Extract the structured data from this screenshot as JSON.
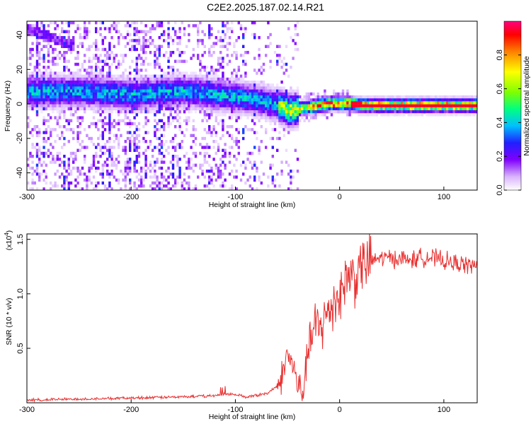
{
  "title": "C2E2.2025.187.02.14.R21",
  "chart_data": [
    {
      "type": "heatmap",
      "xlabel": "Height of straight line (km)",
      "ylabel": "Frequency (Hz)",
      "xlim": [
        -300,
        132
      ],
      "ylim": [
        -50,
        48
      ],
      "xticks": [
        -300,
        -200,
        -100,
        0,
        100
      ],
      "xtick_labels": [
        "-300",
        "-200",
        "-100",
        "0",
        "100"
      ],
      "yticks": [
        -40,
        -20,
        0,
        20,
        40
      ],
      "ytick_labels": [
        "-40",
        "-20",
        "0",
        "20",
        "40"
      ],
      "colorbar": {
        "label": "Normalized spectral amplitude",
        "range": [
          0,
          1
        ],
        "ticks": [
          0.0,
          0.2,
          0.4,
          0.6,
          0.8
        ],
        "tick_labels": [
          "0.0",
          "0.2",
          "0.4",
          "0.6",
          "0.8"
        ],
        "colors": [
          "#ffffff",
          "#d9b3ff",
          "#8000ff",
          "#2020ff",
          "#00c0ff",
          "#00ff80",
          "#80ff00",
          "#ffff00",
          "#ff8000",
          "#ff0000",
          "#ff0080"
        ]
      },
      "ridge": {
        "name": "",
        "x": [
          -300,
          -280,
          -260,
          -240,
          -220,
          -200,
          -180,
          -160,
          -140,
          -120,
          -100,
          -80,
          -60,
          -50,
          -40,
          -30,
          -20,
          -10,
          0,
          10,
          20,
          40,
          80,
          132
        ],
        "y": [
          8,
          8,
          8,
          8,
          7,
          6,
          7,
          8,
          8,
          6,
          5,
          3,
          0,
          -3,
          -2,
          -1,
          0,
          1,
          1,
          1,
          0,
          0,
          0,
          0
        ]
      },
      "upper_branch": {
        "x": [
          -300,
          -280,
          -260
        ],
        "y": [
          44,
          40,
          35
        ]
      }
    },
    {
      "type": "line",
      "xlabel": "Height of straight line (km)",
      "ylabel": "SNR (10 * v/v)",
      "y_multiplier": "(x10",
      "y_multiplier_exp": "4",
      "y_multiplier_close": ")",
      "xlim": [
        -300,
        132
      ],
      "ylim": [
        0,
        1.55
      ],
      "xticks": [
        -300,
        -200,
        -100,
        0,
        100
      ],
      "xtick_labels": [
        "-300",
        "-200",
        "-100",
        "0",
        "100"
      ],
      "yticks": [
        0.5,
        1.0,
        1.5
      ],
      "ytick_labels": [
        "0.5",
        "1.0",
        "1.5"
      ],
      "color": "#e83030",
      "series": [
        {
          "x": [
            -300,
            -250,
            -200,
            -150,
            -120,
            -110,
            -100,
            -90,
            -80,
            -70,
            -60,
            -55,
            -50,
            -45,
            -40,
            -35,
            -30,
            -25,
            -20,
            -15,
            -10,
            -5,
            0,
            5,
            10,
            15,
            20,
            25,
            30,
            40,
            50,
            60,
            70,
            80,
            90,
            100,
            110,
            120,
            132
          ],
          "y": [
            0.02,
            0.03,
            0.04,
            0.05,
            0.06,
            0.08,
            0.07,
            0.05,
            0.06,
            0.08,
            0.15,
            0.25,
            0.45,
            0.35,
            0.15,
            0.1,
            0.5,
            0.65,
            0.7,
            0.75,
            0.85,
            0.95,
            1.0,
            1.1,
            1.2,
            1.15,
            1.25,
            1.28,
            1.3,
            1.33,
            1.33,
            1.32,
            1.31,
            1.34,
            1.33,
            1.3,
            1.28,
            1.27,
            1.25
          ]
        }
      ]
    }
  ]
}
